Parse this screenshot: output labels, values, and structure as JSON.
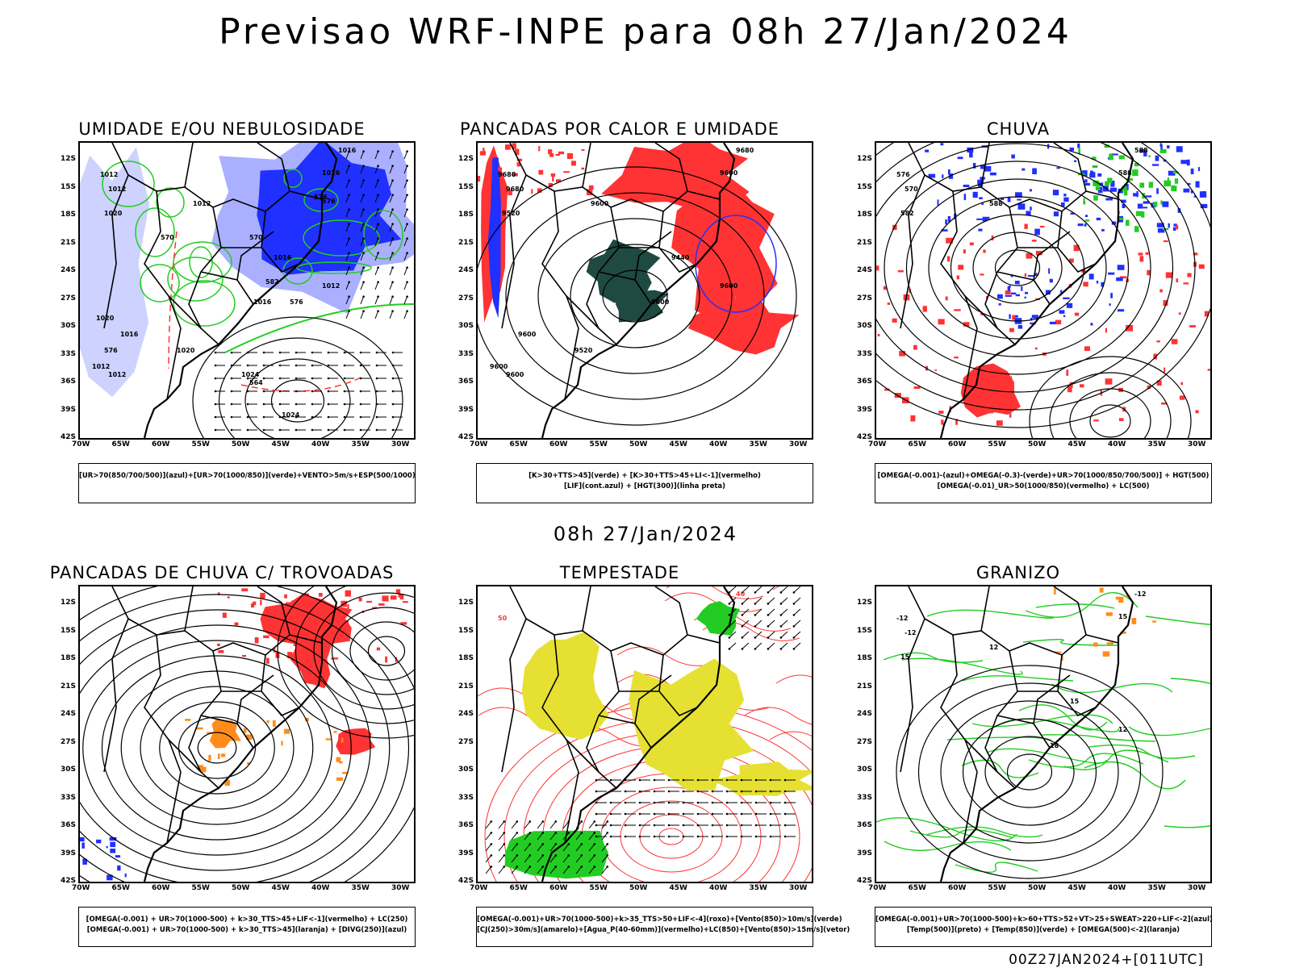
{
  "title": "Previsao WRF-INPE  para 08h 27/Jan/2024",
  "mid_title": "08h 27/Jan/2024",
  "footer": "00Z27JAN2024+[011UTC]",
  "lat_labels": [
    "12S",
    "15S",
    "18S",
    "21S",
    "24S",
    "27S",
    "30S",
    "33S",
    "36S",
    "39S",
    "42S"
  ],
  "lon_labels": [
    "70W",
    "65W",
    "60W",
    "55W",
    "50W",
    "45W",
    "40W",
    "35W",
    "30W"
  ],
  "colors": {
    "blue": "#2030ff",
    "lightblue": "#aab0ff",
    "green": "#22cc22",
    "red": "#ff3333",
    "darkgreen": "#1f4a42",
    "orange": "#ff8c1a",
    "yellow": "#e6e033",
    "black": "#000000"
  },
  "panels": [
    {
      "title": "UMIDADE E/OU NEBULOSIDADE",
      "legend": [
        "[UR>70(850/700/500)](azul)+[UR>70(1000/850)](verde)+VENTO>5m/s+ESP(500/1000)"
      ],
      "contour_labels": [
        "1016",
        "1012",
        "1012",
        "1012",
        "1016",
        "1020",
        "1016",
        "1016",
        "1012",
        "1020",
        "1012",
        "1012",
        "1016",
        "1020",
        "1024",
        "1024",
        "576",
        "576",
        "570",
        "564",
        "576",
        "582",
        "576",
        "570"
      ]
    },
    {
      "title": "PANCADAS POR CALOR E UMIDADE",
      "legend": [
        "[K>30+TTS>45](verde) + [K>30+TTS>45+LI<-1](vermelho)",
        "[LIF](cont.azul) + [HGT(300)](linha preta)"
      ],
      "contour_labels": [
        "9680",
        "9680",
        "9680",
        "9600",
        "9600",
        "9520",
        "9440",
        "9600",
        "9600",
        "9520",
        "9600",
        "9600",
        "9600"
      ]
    },
    {
      "title": "CHUVA",
      "legend": [
        "[OMEGA(-0.001)-(azul)+OMEGA(-0.3)-(verde)+UR>70(1000/850/700/500)] + HGT(500)",
        "[OMEGA(-0.01)_UR>50(1000/850)(vermelho) + LC(500)"
      ],
      "contour_labels": [
        "588",
        "576",
        "570",
        "588",
        "588",
        "582"
      ]
    },
    {
      "title": "PANCADAS DE CHUVA C/ TROVOADAS",
      "legend": [
        "[OMEGA(-0.001) + UR>70(1000-500) + k>30_TTS>45+LIF<-1](vermelho) + LC(250)",
        "[OMEGA(-0.001) + UR>70(1000-500) + k>30_TTS>45](laranja) + [DIVG(250)](azul)"
      ],
      "contour_labels": []
    },
    {
      "title": "TEMPESTADE",
      "legend": [
        "[OMEGA(-0.001)+UR>70(1000-500)+k>35_TTS>50+LIF<-4](roxo)+[Vento(850)>10m/s](verde)",
        "[CJ(250)>30m/s](amarelo)+[Agua_P(40-60mm)](vermelho)+LC(850)+[Vento(850)>15m/s](vetor)"
      ],
      "contour_labels": [
        "40",
        "50"
      ]
    },
    {
      "title": "GRANIZO",
      "legend": [
        "[OMEGA(-0.001)+UR>70(1000-500)+k>60+TTS>52+VT>25+SWEAT>220+LIF<-2](azul)",
        "[Temp(500)](preto) + [Temp(850)](verde) + [OMEGA(500)<-2](laranja)"
      ],
      "contour_labels": [
        "-12",
        "-12",
        "-12",
        "12",
        "15",
        "15",
        "15",
        "18",
        "12"
      ]
    }
  ]
}
